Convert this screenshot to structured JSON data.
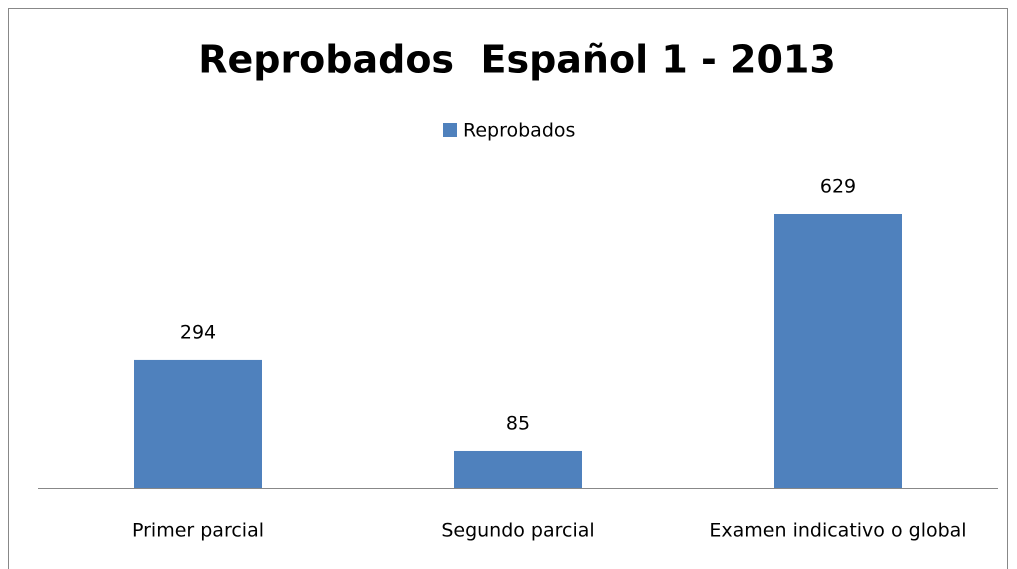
{
  "chart_data": {
    "type": "bar",
    "title": "Reprobados  Español 1 - 2013",
    "categories": [
      "Primer parcial",
      "Segundo parcial",
      "Examen indicativo o global"
    ],
    "series": [
      {
        "name": "Reprobados",
        "color": "#4f81bd",
        "values": [
          294,
          85,
          629
        ]
      }
    ],
    "legend": "top"
  }
}
